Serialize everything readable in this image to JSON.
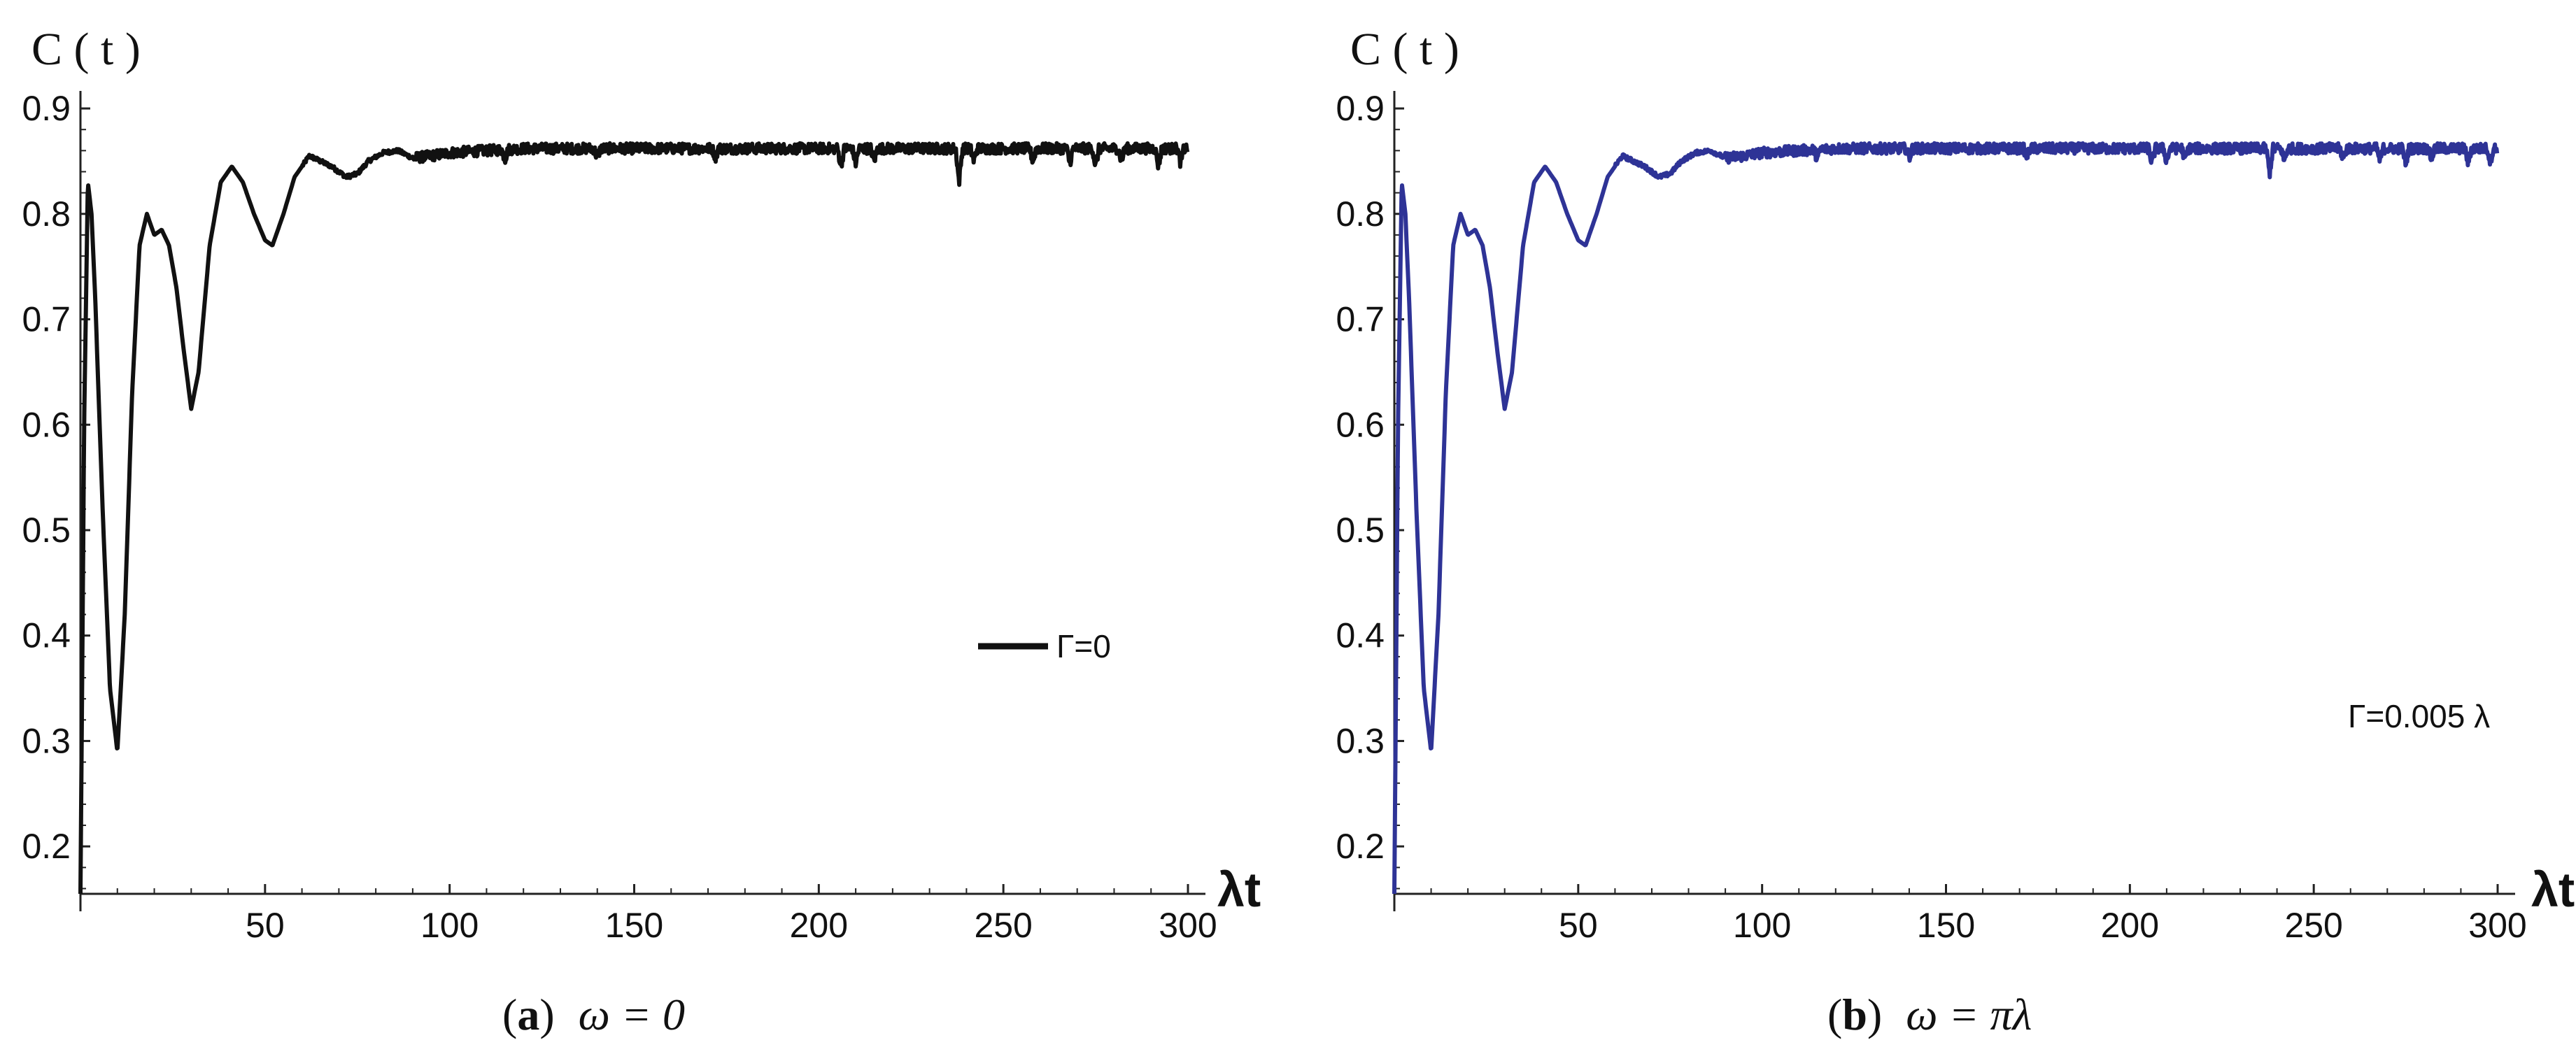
{
  "chart_data": [
    {
      "type": "line",
      "ylabel": "C ( t )",
      "xlabel": "λt",
      "xlim": [
        0,
        300
      ],
      "ylim": [
        0.155,
        0.91
      ],
      "xticks": [
        "50",
        "100",
        "150",
        "200",
        "250",
        "300"
      ],
      "yticks": [
        "0.2",
        "0.3",
        "0.4",
        "0.5",
        "0.6",
        "0.7",
        "0.8",
        "0.9"
      ],
      "legend": "Γ=0",
      "legend_position": "middle-right",
      "caption": {
        "label": "a",
        "text": "ω = 0"
      },
      "color": "#111111",
      "series": [
        {
          "name": "Γ=0",
          "x": [
            0,
            1,
            2,
            3,
            4,
            6,
            8,
            10,
            12,
            14,
            16,
            18,
            20,
            22,
            24,
            26,
            28,
            30,
            32,
            35,
            38,
            41,
            44,
            47,
            50,
            52,
            55,
            58,
            62,
            65,
            68,
            72,
            75,
            78,
            82,
            86,
            90,
            95,
            100,
            110,
            120,
            140,
            160,
            180,
            200,
            220,
            240,
            260,
            280,
            300
          ],
          "y": [
            0.155,
            0.6,
            0.83,
            0.8,
            0.72,
            0.52,
            0.35,
            0.29,
            0.42,
            0.63,
            0.77,
            0.8,
            0.78,
            0.785,
            0.77,
            0.73,
            0.67,
            0.615,
            0.65,
            0.77,
            0.83,
            0.845,
            0.83,
            0.8,
            0.775,
            0.77,
            0.8,
            0.835,
            0.855,
            0.85,
            0.845,
            0.835,
            0.838,
            0.85,
            0.858,
            0.86,
            0.853,
            0.855,
            0.858,
            0.86,
            0.862,
            0.862,
            0.862,
            0.862,
            0.862,
            0.862,
            0.862,
            0.862,
            0.862,
            0.862
          ]
        }
      ],
      "dips": [
        [
          115,
          0.852
        ],
        [
          140,
          0.853
        ],
        [
          172,
          0.854
        ],
        [
          206,
          0.845
        ],
        [
          210,
          0.848
        ],
        [
          215,
          0.85
        ],
        [
          238,
          0.83
        ],
        [
          242,
          0.85
        ],
        [
          258,
          0.85
        ],
        [
          268,
          0.848
        ],
        [
          275,
          0.845
        ],
        [
          282,
          0.85
        ],
        [
          292,
          0.845
        ],
        [
          298,
          0.848
        ]
      ]
    },
    {
      "type": "line",
      "ylabel": "C ( t )",
      "xlabel": "λt",
      "xlim": [
        0,
        300
      ],
      "ylim": [
        0.155,
        0.91
      ],
      "xticks": [
        "50",
        "100",
        "150",
        "200",
        "250",
        "300"
      ],
      "yticks": [
        "0.2",
        "0.3",
        "0.4",
        "0.5",
        "0.6",
        "0.7",
        "0.8",
        "0.9"
      ],
      "legend": "Γ=0.005 λ",
      "legend_position": "lower-right",
      "caption": {
        "label": "b",
        "text": "ω = πλ"
      },
      "color": "#2e3396",
      "series": [
        {
          "name": "Γ=0.005 λ",
          "x": [
            0,
            1,
            2,
            3,
            4,
            6,
            8,
            10,
            12,
            14,
            16,
            18,
            20,
            22,
            24,
            26,
            28,
            30,
            32,
            35,
            38,
            41,
            44,
            47,
            50,
            52,
            55,
            58,
            62,
            65,
            68,
            72,
            75,
            78,
            82,
            86,
            90,
            95,
            100,
            110,
            120,
            140,
            160,
            180,
            200,
            220,
            240,
            260,
            280,
            300
          ],
          "y": [
            0.155,
            0.6,
            0.83,
            0.8,
            0.72,
            0.52,
            0.35,
            0.29,
            0.42,
            0.63,
            0.77,
            0.8,
            0.78,
            0.785,
            0.77,
            0.73,
            0.67,
            0.615,
            0.65,
            0.77,
            0.83,
            0.845,
            0.83,
            0.8,
            0.775,
            0.77,
            0.8,
            0.835,
            0.855,
            0.85,
            0.845,
            0.835,
            0.838,
            0.85,
            0.858,
            0.86,
            0.853,
            0.855,
            0.858,
            0.86,
            0.862,
            0.862,
            0.862,
            0.862,
            0.862,
            0.862,
            0.862,
            0.862,
            0.862,
            0.862
          ]
        }
      ],
      "dips": [
        [
          115,
          0.852
        ],
        [
          140,
          0.853
        ],
        [
          172,
          0.854
        ],
        [
          206,
          0.848
        ],
        [
          210,
          0.85
        ],
        [
          215,
          0.852
        ],
        [
          238,
          0.838
        ],
        [
          242,
          0.85
        ],
        [
          258,
          0.852
        ],
        [
          268,
          0.85
        ],
        [
          275,
          0.848
        ],
        [
          282,
          0.852
        ],
        [
          292,
          0.848
        ],
        [
          298,
          0.85
        ]
      ]
    }
  ]
}
